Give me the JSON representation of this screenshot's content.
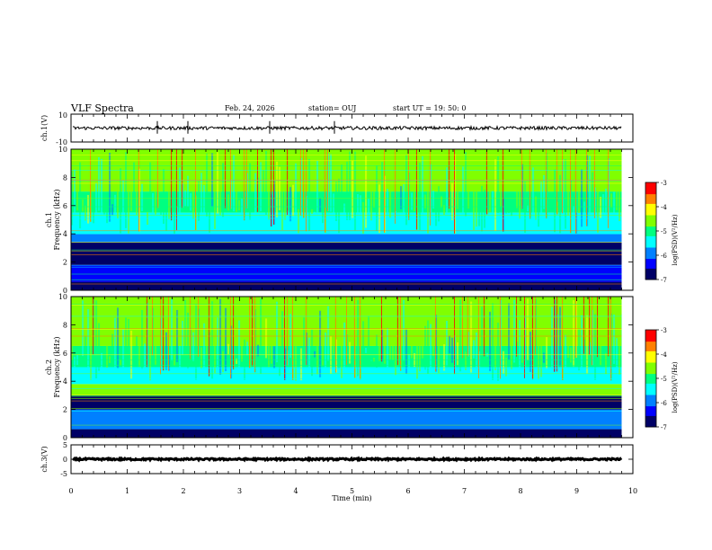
{
  "header": {
    "title": "VLF Spectra",
    "date": "Feb. 24, 2026",
    "station": "station= OUJ",
    "start": "start  UT  =   19: 50: 0"
  },
  "colors": {
    "colorbar": [
      "#000066",
      "#0000ff",
      "#0080ff",
      "#00ffff",
      "#00ff80",
      "#80ff00",
      "#ffff00",
      "#ff8000",
      "#ff0000",
      "#ffffff"
    ],
    "trace": "#000000",
    "frame": "#000000"
  },
  "chart_data": [
    {
      "type": "line",
      "name": "ch1-waveform",
      "ylabel": "ch.1(V)",
      "ylim": [
        -10,
        10
      ],
      "yticks": [
        "10",
        "-10"
      ],
      "x_range_min": [
        0,
        10
      ],
      "trace_center": 0,
      "trace_noise": 1.2
    },
    {
      "type": "heatmap",
      "name": "ch1-spectrogram",
      "ylabel": "ch.1\nFrequency (kHz)",
      "ylabel_line1": "ch.1",
      "ylabel_line2": "Frequency (kHz)",
      "ylim": [
        0,
        10
      ],
      "yticks": [
        "0",
        "2",
        "4",
        "6",
        "8",
        "10"
      ],
      "colorbar": {
        "label": "log(PSD)(V²/Hz)",
        "range": [
          -7,
          -3
        ],
        "ticks": [
          "-3",
          "-4",
          "-5",
          "-6",
          "-7"
        ]
      },
      "bands_khz": [
        {
          "from": 0,
          "to": 0.6,
          "level": -6.9
        },
        {
          "from": 0.6,
          "to": 1.8,
          "level": -6.2
        },
        {
          "from": 1.8,
          "to": 3.4,
          "level": -6.7
        },
        {
          "from": 3.4,
          "to": 4.0,
          "level": -5.8
        },
        {
          "from": 4.0,
          "to": 5.5,
          "level": -5.5
        },
        {
          "from": 5.5,
          "to": 7.0,
          "level": -4.9
        },
        {
          "from": 7.0,
          "to": 10,
          "level": -4.6
        }
      ]
    },
    {
      "type": "heatmap",
      "name": "ch2-spectrogram",
      "ylabel": "ch.2\nFrequency (kHz)",
      "ylabel_line1": "ch.2",
      "ylabel_line2": "Frequency (kHz)",
      "ylim": [
        0,
        10
      ],
      "yticks": [
        "0",
        "2",
        "4",
        "6",
        "8",
        "10"
      ],
      "colorbar": {
        "label": "log(PSD)(V²/Hz)",
        "range": [
          -7,
          -3
        ],
        "ticks": [
          "-3",
          "-4",
          "-5",
          "-6",
          "-7"
        ]
      },
      "bands_khz": [
        {
          "from": 0,
          "to": 0.6,
          "level": -6.6
        },
        {
          "from": 0.6,
          "to": 2.0,
          "level": -6.1
        },
        {
          "from": 2.0,
          "to": 3.0,
          "level": -6.6
        },
        {
          "from": 3.0,
          "to": 3.8,
          "level": -4.7
        },
        {
          "from": 3.8,
          "to": 5.0,
          "level": -5.6
        },
        {
          "from": 5.0,
          "to": 6.5,
          "level": -5.1
        },
        {
          "from": 6.5,
          "to": 10,
          "level": -4.6
        }
      ]
    },
    {
      "type": "line",
      "name": "ch3-waveform",
      "ylabel": "ch.3(V)",
      "ylim": [
        -5,
        5
      ],
      "yticks": [
        "5",
        "0",
        "-5"
      ],
      "trace_center": 0,
      "trace_noise": 0.3
    }
  ],
  "xaxis": {
    "label": "Time  (min)",
    "range": [
      0,
      10
    ],
    "ticks": [
      "0",
      "1",
      "2",
      "3",
      "4",
      "5",
      "6",
      "7",
      "8",
      "9",
      "10"
    ],
    "data_end": 9.8
  }
}
